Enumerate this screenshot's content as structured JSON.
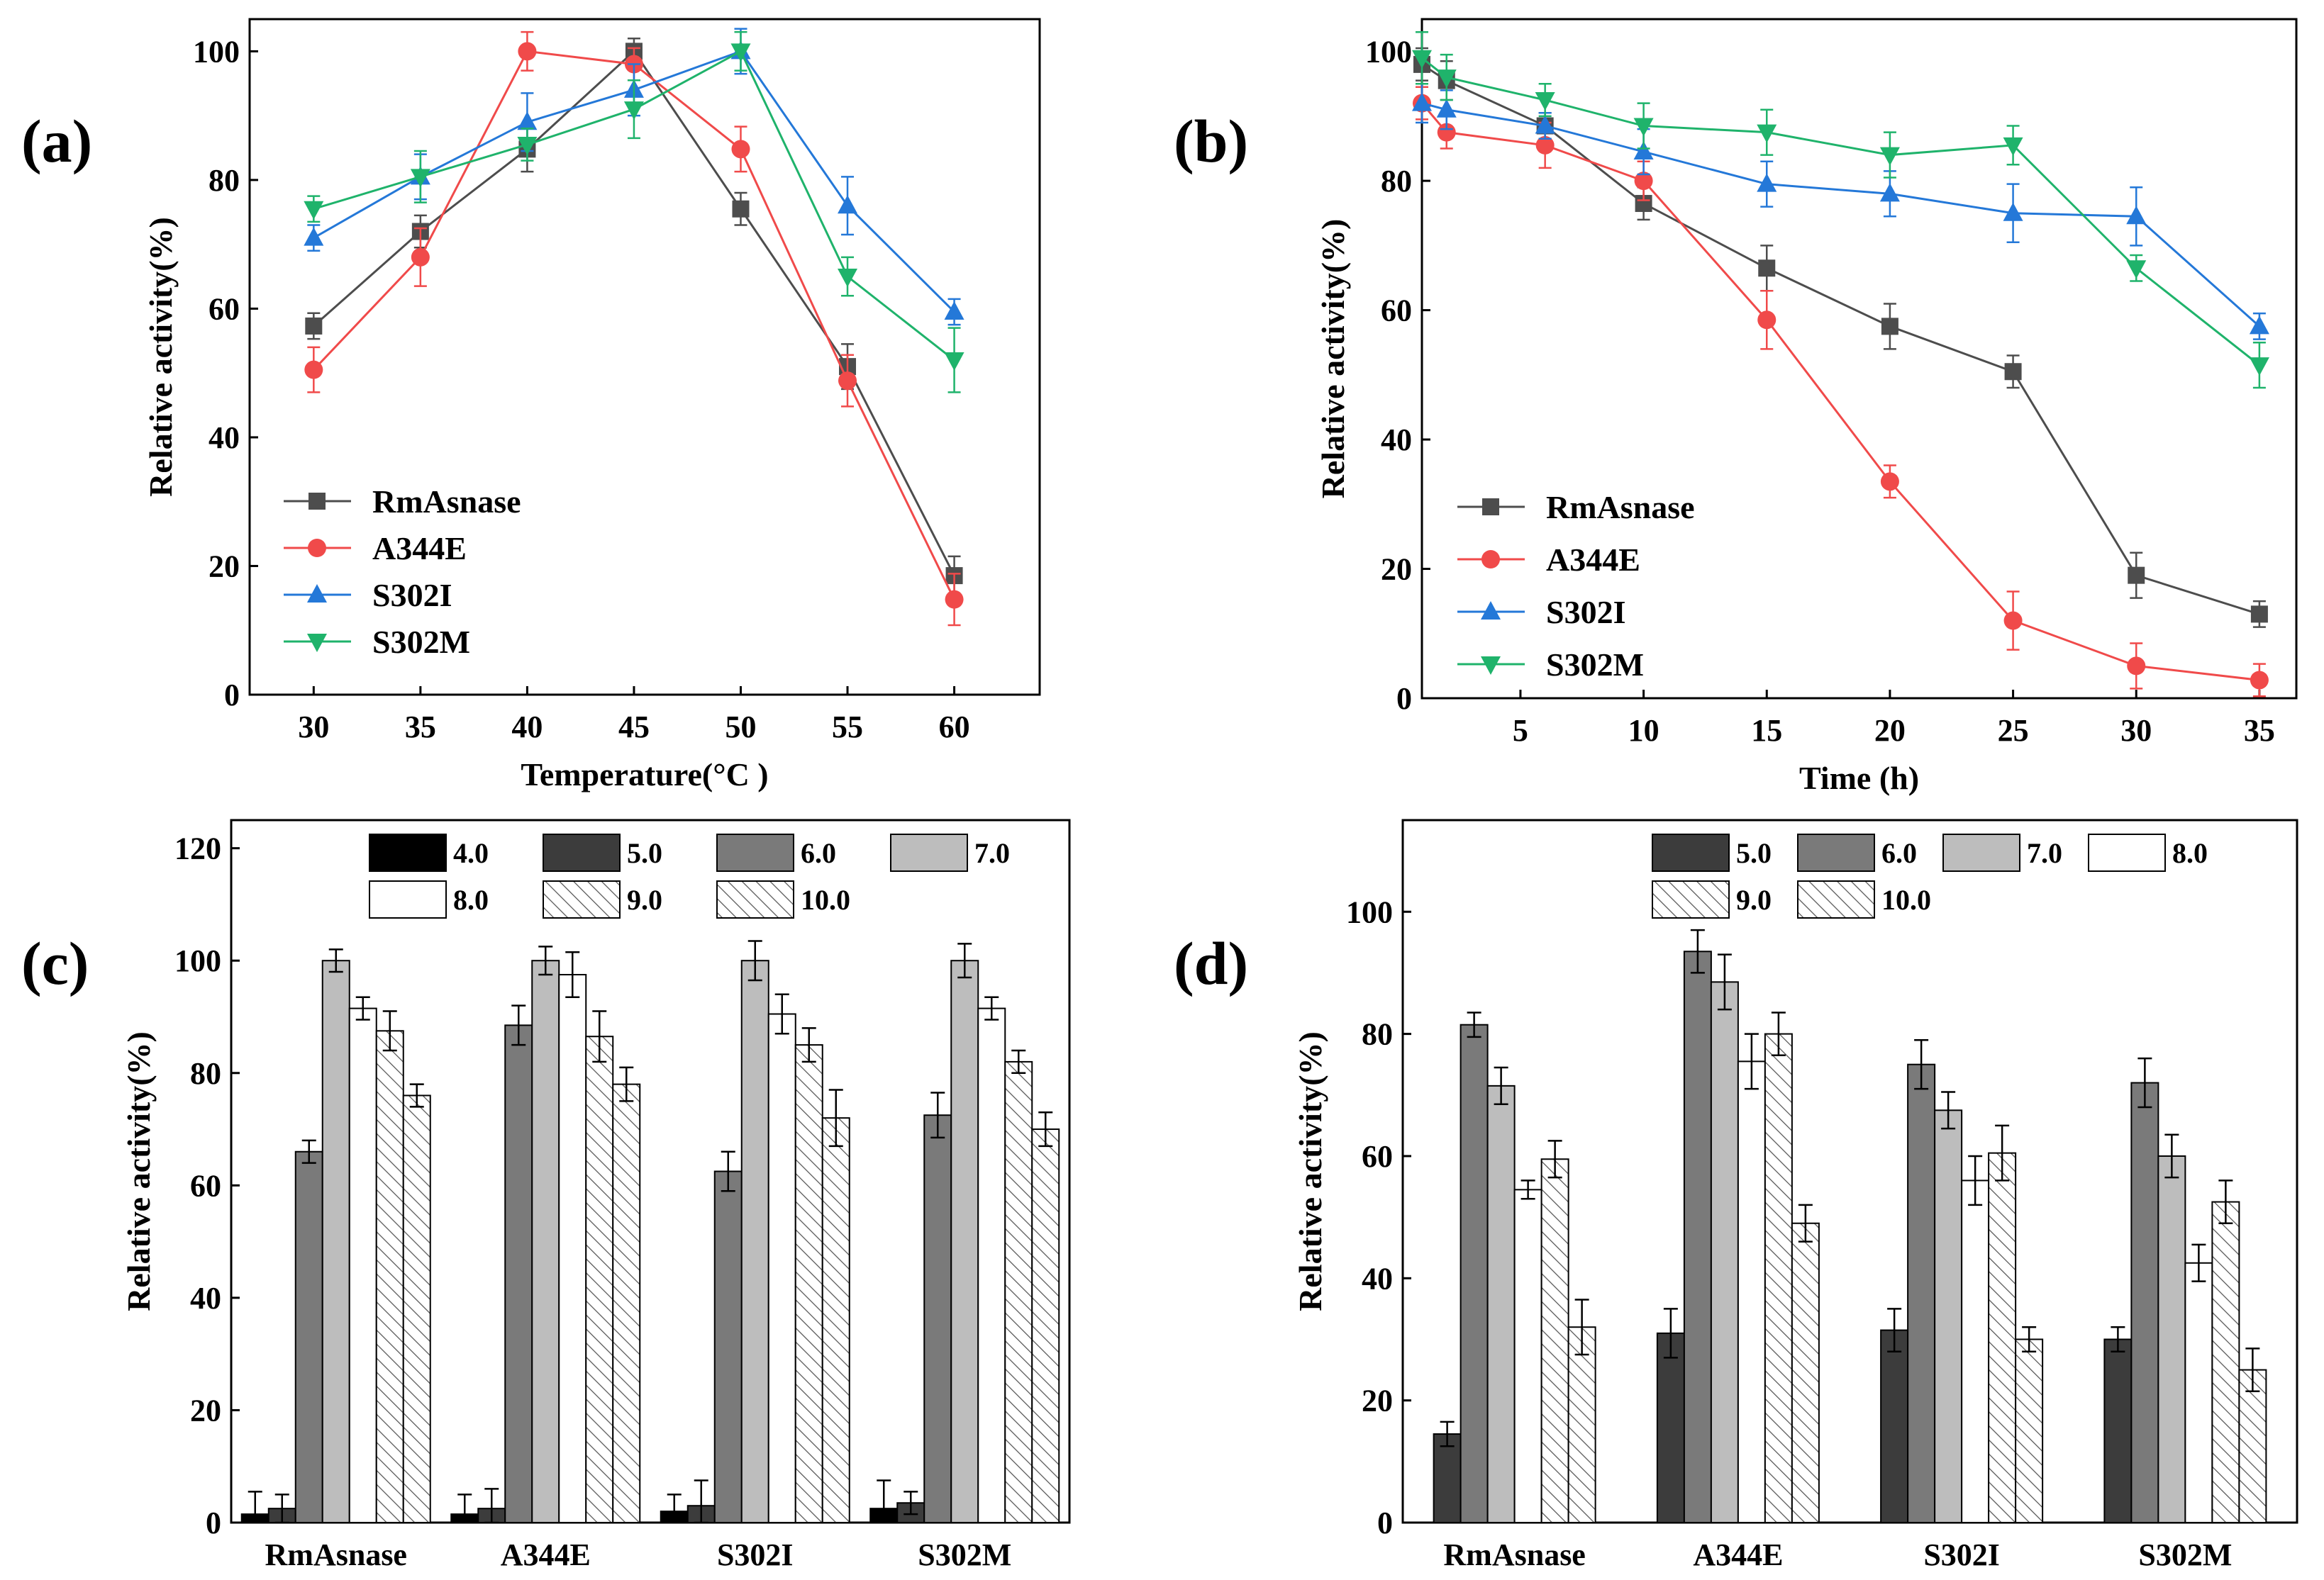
{
  "figure": {
    "panel_labels": [
      "(a)",
      "(b)",
      "(c)",
      "(d)"
    ]
  },
  "colors": {
    "RmAsnase": "#4d4d4d",
    "A344E": "#f04a4a",
    "S302I": "#2478d8",
    "S302M": "#1fb36b",
    "bar_fills": [
      "#000000",
      "#3c3c3c",
      "#7a7a7a",
      "#bdbdbd",
      "#ffffff",
      "hatch",
      "hatch"
    ]
  },
  "chart_data": [
    {
      "panel": "(a)",
      "type": "line",
      "title": "",
      "xlabel": "Temperature(°C )",
      "ylabel": "Relative activity(%)",
      "x": [
        30,
        35,
        40,
        45,
        50,
        55,
        60
      ],
      "xlim": [
        27,
        64
      ],
      "ylim": [
        0,
        105
      ],
      "xticks": [
        "30",
        "35",
        "40",
        "45",
        "50",
        "55",
        "60"
      ],
      "yticks": [
        "0",
        "20",
        "40",
        "60",
        "80",
        "100"
      ],
      "legend_position": "bottom-left",
      "series": [
        {
          "name": "RmAsnase",
          "marker": "square",
          "values": [
            57.3,
            72,
            84.8,
            100,
            75.5,
            51,
            18.5
          ],
          "errors": [
            2,
            2.5,
            3.5,
            2,
            2.5,
            3.5,
            3
          ]
        },
        {
          "name": "A344E",
          "marker": "circle",
          "values": [
            50.5,
            68,
            100,
            98,
            84.8,
            48.8,
            14.8
          ],
          "errors": [
            3.5,
            4.5,
            3,
            2.5,
            3.5,
            4,
            4
          ]
        },
        {
          "name": "S302I",
          "marker": "triangle-up",
          "values": [
            71,
            80.5,
            89,
            94,
            100,
            76,
            59.5
          ],
          "errors": [
            2,
            3.5,
            4.5,
            4,
            3.5,
            4.5,
            2
          ]
        },
        {
          "name": "S302M",
          "marker": "triangle-down",
          "values": [
            75.5,
            80.5,
            85.5,
            91,
            100,
            65,
            52
          ],
          "errors": [
            2,
            4,
            2.5,
            4.5,
            3,
            3,
            5
          ]
        }
      ]
    },
    {
      "panel": "(b)",
      "type": "line",
      "title": "",
      "xlabel": "Time (h)",
      "ylabel": "Relative activity(%)",
      "x": [
        1,
        2,
        6,
        10,
        15,
        20,
        25,
        30,
        35
      ],
      "xlim": [
        1,
        36.5
      ],
      "ylim": [
        0,
        105
      ],
      "xticks": [
        "5",
        "10",
        "15",
        "20",
        "25",
        "30",
        "35"
      ],
      "yticks": [
        "0",
        "20",
        "40",
        "60",
        "80",
        "100"
      ],
      "legend_position": "bottom-left",
      "series": [
        {
          "name": "RmAsnase",
          "marker": "square",
          "values": [
            98,
            95.5,
            88.5,
            76.5,
            66.5,
            57.5,
            50.5,
            19,
            13
          ],
          "errors": [
            2.5,
            3,
            2,
            2.5,
            3.5,
            3.5,
            2.5,
            3.5,
            2
          ]
        },
        {
          "name": "A344E",
          "marker": "circle",
          "values": [
            92,
            87.5,
            85.5,
            80,
            58.5,
            33.5,
            12,
            5,
            2.8
          ],
          "errors": [
            2.5,
            2.5,
            3.5,
            3,
            4.5,
            2.5,
            4.5,
            3.5,
            2.5
          ]
        },
        {
          "name": "S302I",
          "marker": "triangle-up",
          "values": [
            92,
            91,
            88.5,
            84.5,
            79.5,
            78,
            75,
            74.5,
            57.5
          ],
          "errors": [
            3,
            3,
            2,
            3.5,
            3.5,
            3.5,
            4.5,
            4.5,
            2
          ]
        },
        {
          "name": "S302M",
          "marker": "triangle-down",
          "values": [
            99,
            96,
            92.5,
            88.5,
            87.5,
            84,
            85.5,
            66.5,
            51.5
          ],
          "errors": [
            4,
            3.5,
            2.5,
            3.5,
            3.5,
            3.5,
            3,
            2,
            3.5
          ]
        }
      ]
    },
    {
      "panel": "(c)",
      "type": "bar",
      "title": "",
      "xlabel": "",
      "ylabel": "Relative activity(%)",
      "categories": [
        "RmAsnase",
        "A344E",
        "S302I",
        "S302M"
      ],
      "ylim": [
        0,
        125
      ],
      "yticks": [
        "0",
        "20",
        "40",
        "60",
        "80",
        "100",
        "120"
      ],
      "legend_position": "top-right",
      "series": [
        {
          "name": "4.0",
          "values": [
            1.5,
            1.5,
            2,
            2.5
          ],
          "errors": [
            4,
            3.5,
            3,
            5
          ]
        },
        {
          "name": "5.0",
          "values": [
            2.5,
            2.5,
            3,
            3.5
          ],
          "errors": [
            2.5,
            3.5,
            4.5,
            2
          ]
        },
        {
          "name": "6.0",
          "values": [
            66,
            88.5,
            62.5,
            72.5
          ],
          "errors": [
            2,
            3.5,
            3.5,
            4
          ]
        },
        {
          "name": "7.0",
          "values": [
            100,
            100,
            100,
            100
          ],
          "errors": [
            2,
            2.5,
            3.5,
            3
          ]
        },
        {
          "name": "8.0",
          "values": [
            91.5,
            97.5,
            90.5,
            91.5
          ],
          "errors": [
            2,
            4,
            3.5,
            2
          ]
        },
        {
          "name": "9.0",
          "values": [
            87.5,
            86.5,
            85,
            82
          ],
          "errors": [
            3.5,
            4.5,
            3,
            2
          ]
        },
        {
          "name": "10.0",
          "values": [
            76,
            78,
            72,
            70
          ],
          "errors": [
            2,
            3,
            5,
            3
          ]
        }
      ]
    },
    {
      "panel": "(d)",
      "type": "bar",
      "title": "",
      "xlabel": "",
      "ylabel": "Relative activity(%)",
      "categories": [
        "RmAsnase",
        "A344E",
        "S302I",
        "S302M"
      ],
      "ylim": [
        0,
        115
      ],
      "yticks": [
        "0",
        "20",
        "40",
        "60",
        "80",
        "100"
      ],
      "legend_position": "top-right",
      "series": [
        {
          "name": "5.0",
          "values": [
            14.5,
            31,
            31.5,
            30
          ],
          "errors": [
            2,
            4,
            3.5,
            2
          ]
        },
        {
          "name": "6.0",
          "values": [
            81.5,
            93.5,
            75,
            72
          ],
          "errors": [
            2,
            3.5,
            4,
            4
          ]
        },
        {
          "name": "7.0",
          "values": [
            71.5,
            88.5,
            67.5,
            60
          ],
          "errors": [
            3,
            4.5,
            3,
            3.5
          ]
        },
        {
          "name": "8.0",
          "values": [
            54.5,
            75.5,
            56,
            42.5
          ],
          "errors": [
            1.5,
            4.5,
            4,
            3
          ]
        },
        {
          "name": "9.0",
          "values": [
            59.5,
            80,
            60.5,
            52.5
          ],
          "errors": [
            3,
            3.5,
            4.5,
            3.5
          ]
        },
        {
          "name": "10.0",
          "values": [
            32,
            49,
            30,
            25
          ],
          "errors": [
            4.5,
            3,
            2,
            3.5
          ]
        }
      ]
    }
  ]
}
